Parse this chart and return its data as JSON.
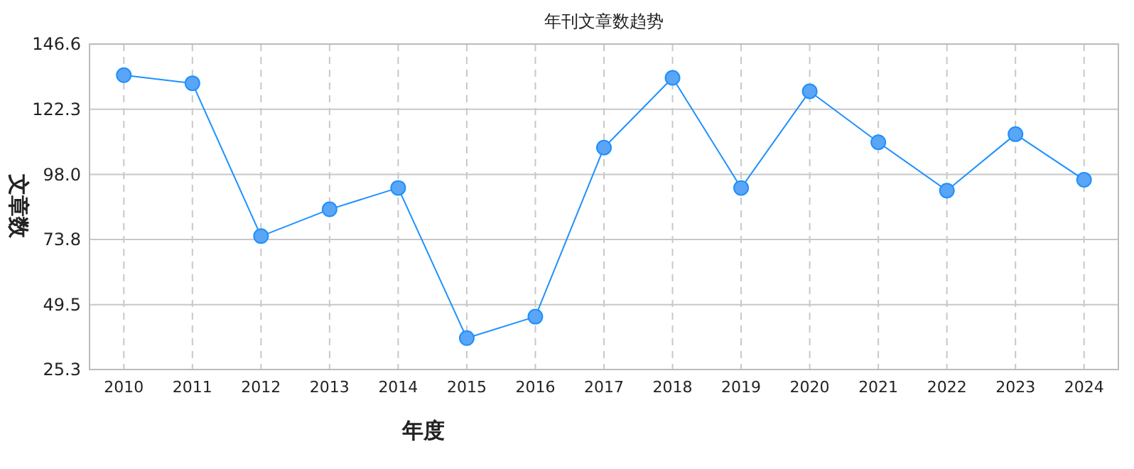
{
  "chart_data": {
    "type": "line",
    "title": "年刊文章数趋势",
    "xlabel": "年度",
    "ylabel": "文章数",
    "categories": [
      "2010",
      "2011",
      "2012",
      "2013",
      "2014",
      "2015",
      "2016",
      "2017",
      "2018",
      "2019",
      "2020",
      "2021",
      "2022",
      "2023",
      "2024"
    ],
    "series": [
      {
        "color": "#1e90ff",
        "values": [
          135,
          132,
          75,
          85,
          93,
          37,
          45,
          108,
          134,
          93,
          129,
          110,
          92,
          113,
          96
        ]
      }
    ],
    "ylim": [
      25.3,
      146.6
    ],
    "yticks": [
      25.3,
      49.5,
      73.8,
      {
        "value": 98.0,
        "label": "98.0"
      },
      122.3,
      146.6
    ],
    "grid": true,
    "marker": "circle",
    "line_style": "solid"
  }
}
